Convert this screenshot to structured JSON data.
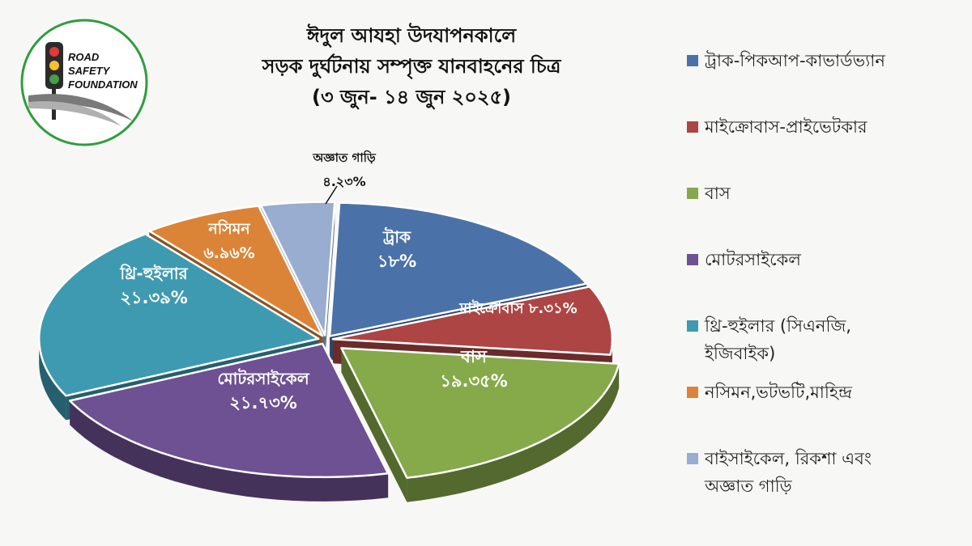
{
  "logo": {
    "lines": [
      "ROAD",
      "SAFETY",
      "FOUNDATION"
    ]
  },
  "chart_data": {
    "type": "pie",
    "title": [
      "ঈদুল আযহা উদযাপনকালে",
      "সড়ক দুর্ঘটনায় সম্পৃক্ত যানবাহনের চিত্র",
      "(৩ জুন- ১৪ জুন ২০২৫)"
    ],
    "unit": "%",
    "slices": [
      {
        "name": "ট্রাক",
        "value": 18,
        "value_label": "১৮%",
        "color": "#4a72a8",
        "exploded": false
      },
      {
        "name": "মাইক্রোবাস",
        "value": 8.31,
        "value_label": "৮.৩১%",
        "color": "#ad4544",
        "exploded": false
      },
      {
        "name": "বাস",
        "value": 19.35,
        "value_label": "১৯.৩৫%",
        "color": "#86a94a",
        "exploded": true
      },
      {
        "name": "মোটরসাইকেল",
        "value": 21.73,
        "value_label": "২১.৭৩%",
        "color": "#6e5192",
        "exploded": false
      },
      {
        "name": "থ্রি-হুইলার",
        "value": 21.39,
        "value_label": "২১.৩৯%",
        "color": "#3e9ab0",
        "exploded": false
      },
      {
        "name": "নসিমন",
        "value": 6.96,
        "value_label": "৬.৯৬%",
        "color": "#db8437",
        "exploded": false
      },
      {
        "name": "অজ্ঞাত গাড়ি",
        "value": 4.23,
        "value_label": "৪.২৩%",
        "color": "#98adcf",
        "exploded": false
      }
    ],
    "legend": {
      "placement": "right",
      "entries": [
        {
          "lines": [
            "ট্রাক-পিকআপ-কাভার্ডভ্যান"
          ],
          "color": "#4a72a8"
        },
        {
          "lines": [
            "মাইক্রোবাস-প্রাইভেটকার"
          ],
          "color": "#ad4544"
        },
        {
          "lines": [
            "বাস"
          ],
          "color": "#86a94a"
        },
        {
          "lines": [
            "মোটরসাইকেল"
          ],
          "color": "#6e5192"
        },
        {
          "lines": [
            "থ্রি-হুইলার (সিএনজি,",
            "ইজিবাইক)"
          ],
          "color": "#3e9ab0"
        },
        {
          "lines": [
            "নসিমন,ভটভটি,মাহিন্দ্র"
          ],
          "color": "#db8437"
        },
        {
          "lines": [
            "বাইসাইকেল, রিকশা এবং",
            "অজ্ঞাত গাড়ি"
          ],
          "color": "#98adcf"
        }
      ]
    }
  }
}
